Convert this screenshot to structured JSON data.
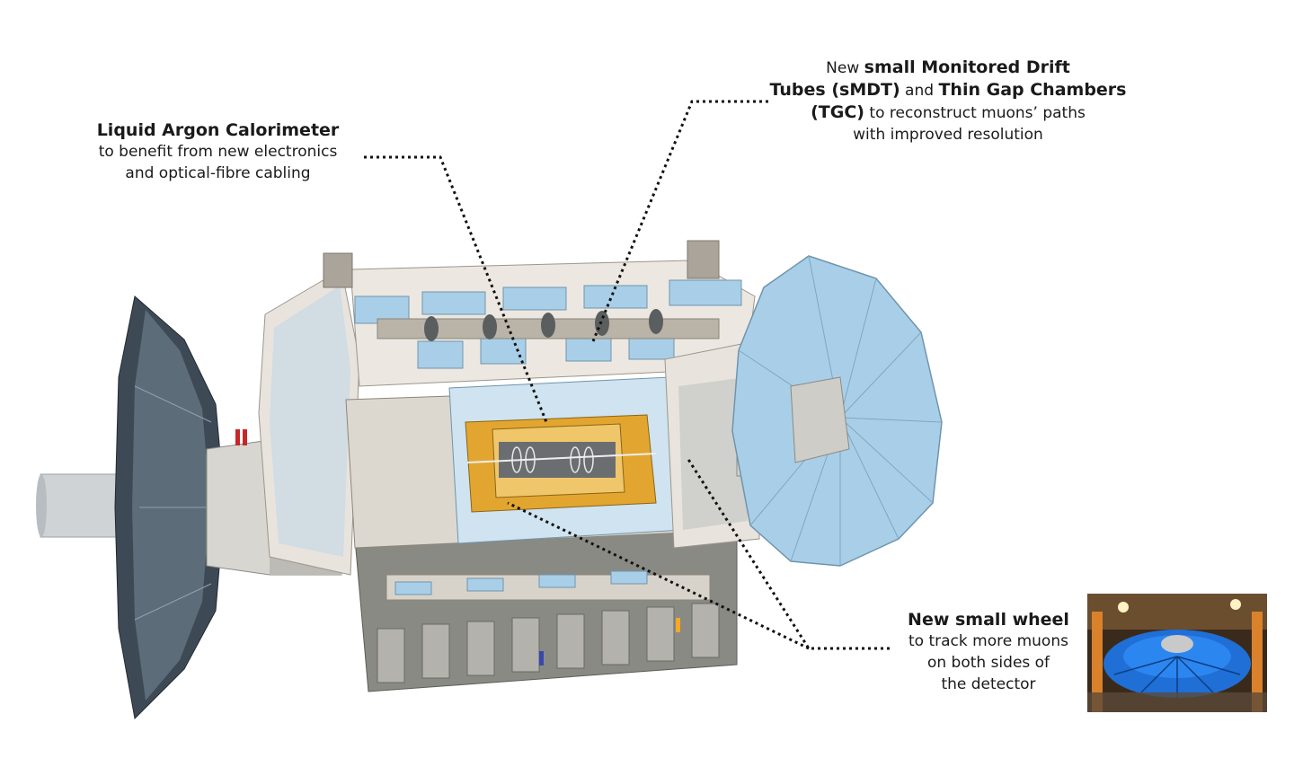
{
  "labels": {
    "lar": {
      "title": "Liquid Argon Calorimeter",
      "line1": "to benefit from new electronics",
      "line2": "and optical-fibre cabling"
    },
    "smdt": {
      "line1_pre": "New ",
      "line1_bold": "small Monitored Drift",
      "line2_bold_a": "Tubes (sMDT)",
      "line2_mid": " and ",
      "line2_bold_b": "Thin Gap Chambers",
      "line3_bold": "(TGC)",
      "line3_rest": " to reconstruct muons’ paths",
      "line4": "with improved resolution"
    },
    "nsw": {
      "title": "New small wheel",
      "line1": "to track more muons",
      "line2": "on both sides of",
      "line3": "the detector"
    }
  },
  "colors": {
    "wheel_blue": "#a9cfe8",
    "wheel_dark": "#3d4a56",
    "magnet_beige": "#e4ddd2",
    "calorimeter_gold": "#e2a630",
    "support_grey": "#8a8a84",
    "leader": "#111111"
  }
}
